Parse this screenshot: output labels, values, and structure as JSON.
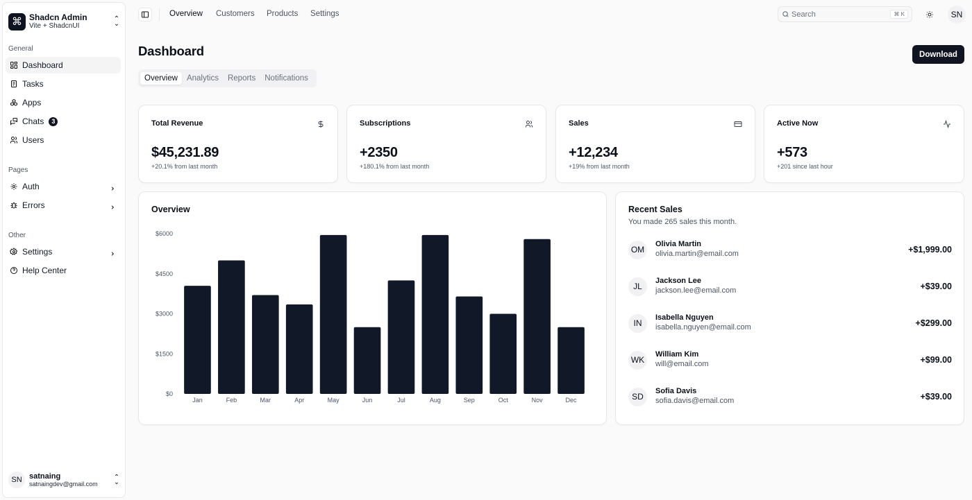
{
  "brand": {
    "title": "Shadcn Admin",
    "subtitle": "Vite + ShadcnUI"
  },
  "sidebar": {
    "groups": [
      {
        "label": "General"
      },
      {
        "label": "Pages"
      },
      {
        "label": "Other"
      }
    ],
    "items": [
      {
        "label": "Dashboard",
        "icon": "layout-dashboard-icon"
      },
      {
        "label": "Tasks",
        "icon": "checklist-icon"
      },
      {
        "label": "Apps",
        "icon": "packages-icon"
      },
      {
        "label": "Chats",
        "icon": "messages-icon",
        "badge": "3"
      },
      {
        "label": "Users",
        "icon": "users-icon"
      },
      {
        "label": "Auth",
        "icon": "lock-icon"
      },
      {
        "label": "Errors",
        "icon": "bug-icon"
      },
      {
        "label": "Settings",
        "icon": "settings-icon"
      },
      {
        "label": "Help Center",
        "icon": "help-icon"
      }
    ]
  },
  "user": {
    "initials": "SN",
    "name": "satnaing",
    "email": "satnaingdev@gmail.com"
  },
  "topbar": {
    "links": [
      "Overview",
      "Customers",
      "Products",
      "Settings"
    ],
    "search_placeholder": "Search",
    "shortcut": "⌘ K",
    "avatar": "SN"
  },
  "page": {
    "title": "Dashboard",
    "download_label": "Download"
  },
  "tabs": [
    "Overview",
    "Analytics",
    "Reports",
    "Notifications"
  ],
  "stats": [
    {
      "title": "Total Revenue",
      "value": "$45,231.89",
      "sub": "+20.1% from last month",
      "icon": "dollar-icon"
    },
    {
      "title": "Subscriptions",
      "value": "+2350",
      "sub": "+180.1% from last month",
      "icon": "users-icon"
    },
    {
      "title": "Sales",
      "value": "+12,234",
      "sub": "+19% from last month",
      "icon": "credit-card-icon"
    },
    {
      "title": "Active Now",
      "value": "+573",
      "sub": "+201 since last hour",
      "icon": "activity-icon"
    }
  ],
  "overview": {
    "title": "Overview"
  },
  "chart_data": {
    "type": "bar",
    "title": "Overview",
    "categories": [
      "Jan",
      "Feb",
      "Mar",
      "Apr",
      "May",
      "Jun",
      "Jul",
      "Aug",
      "Sep",
      "Oct",
      "Nov",
      "Dec"
    ],
    "values": [
      4050,
      5000,
      3700,
      3350,
      5950,
      2500,
      4250,
      5950,
      3650,
      3000,
      5800,
      2500
    ],
    "ylim": [
      0,
      6000
    ],
    "yticks": [
      0,
      1500,
      3000,
      4500,
      6000
    ],
    "ytick_labels": [
      "$0",
      "$1500",
      "$3000",
      "$4500",
      "$6000"
    ],
    "bar_color": "#111827",
    "grid": false,
    "xlabel": "",
    "ylabel": ""
  },
  "recent_sales": {
    "title": "Recent Sales",
    "subtitle": "You made 265 sales this month.",
    "items": [
      {
        "initials": "OM",
        "name": "Olivia Martin",
        "email": "olivia.martin@email.com",
        "amount": "+$1,999.00"
      },
      {
        "initials": "JL",
        "name": "Jackson Lee",
        "email": "jackson.lee@email.com",
        "amount": "+$39.00"
      },
      {
        "initials": "IN",
        "name": "Isabella Nguyen",
        "email": "isabella.nguyen@email.com",
        "amount": "+$299.00"
      },
      {
        "initials": "WK",
        "name": "William Kim",
        "email": "will@email.com",
        "amount": "+$99.00"
      },
      {
        "initials": "SD",
        "name": "Sofia Davis",
        "email": "sofia.davis@email.com",
        "amount": "+$39.00"
      }
    ]
  }
}
